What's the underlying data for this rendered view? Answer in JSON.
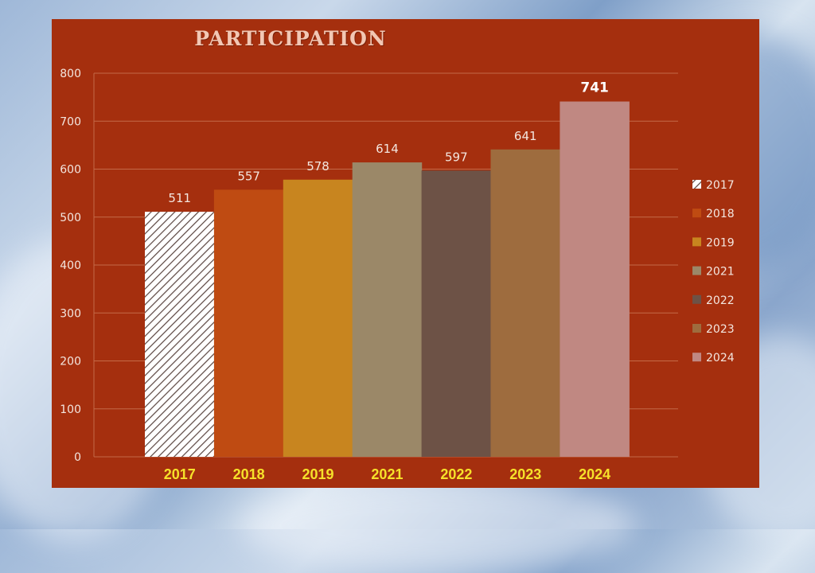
{
  "chart_data": {
    "type": "bar",
    "title": "PARTICIPATION",
    "xlabel": "",
    "ylabel": "",
    "categories": [
      "2017",
      "2018",
      "2019",
      "2021",
      "2022",
      "2023",
      "2024"
    ],
    "values": [
      511,
      557,
      578,
      614,
      597,
      641,
      741
    ],
    "data_labels": [
      "511",
      "557",
      "578",
      "614",
      "597",
      "641",
      "741"
    ],
    "highlight_index": 6,
    "ylim": [
      0,
      800
    ],
    "yticks": [
      0,
      100,
      200,
      300,
      400,
      500,
      600,
      700,
      800
    ],
    "grid": true,
    "legend": {
      "placement": "right",
      "entries": [
        "2017",
        "2018",
        "2019",
        "2021",
        "2022",
        "2023",
        "2024"
      ]
    },
    "colors": [
      "#ffffff",
      "#bf4b12",
      "#c8851f",
      "#9b8868",
      "#6d5246",
      "#9e6c3e",
      "#c08882"
    ],
    "patterns": [
      "hatch",
      "solid",
      "solid",
      "solid",
      "solid",
      "solid",
      "solid"
    ],
    "background_color": "#a52f0e",
    "category_label_color": "#f6e12a"
  }
}
